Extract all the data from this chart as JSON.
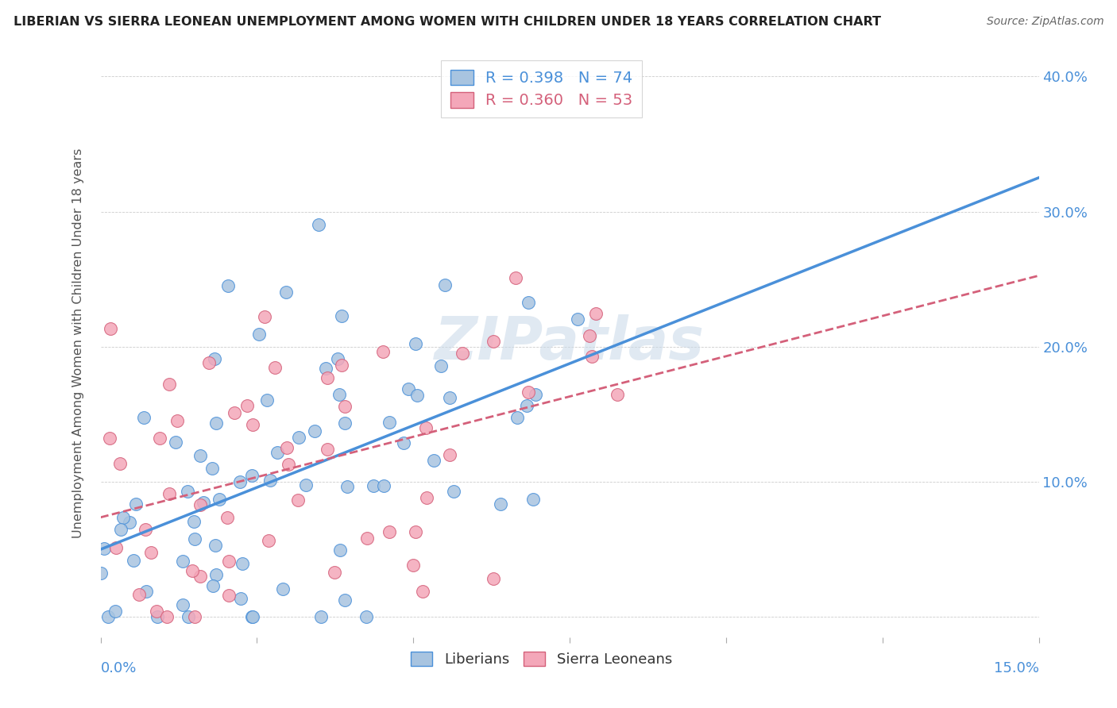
{
  "title": "LIBERIAN VS SIERRA LEONEAN UNEMPLOYMENT AMONG WOMEN WITH CHILDREN UNDER 18 YEARS CORRELATION CHART",
  "source": "Source: ZipAtlas.com",
  "ylabel": "Unemployment Among Women with Children Under 18 years",
  "xlim": [
    0.0,
    0.15
  ],
  "ylim": [
    -0.015,
    0.42
  ],
  "R_liberian": 0.398,
  "N_liberian": 74,
  "R_sierraleonean": 0.36,
  "N_sierraleonean": 53,
  "watermark": "ZIPatlas",
  "color_liberian_face": "#a8c4e0",
  "color_liberian_edge": "#4a90d9",
  "color_sl_face": "#f4a7b9",
  "color_sl_edge": "#d4607a",
  "color_line_liberian": "#4a90d9",
  "color_line_sl": "#d4607a",
  "ytick_values": [
    0.0,
    0.1,
    0.2,
    0.3,
    0.4
  ],
  "ytick_labels": [
    "",
    "10.0%",
    "20.0%",
    "30.0%",
    "40.0%"
  ],
  "xtick_values": [
    0.0,
    0.025,
    0.05,
    0.075,
    0.1,
    0.125,
    0.15
  ]
}
